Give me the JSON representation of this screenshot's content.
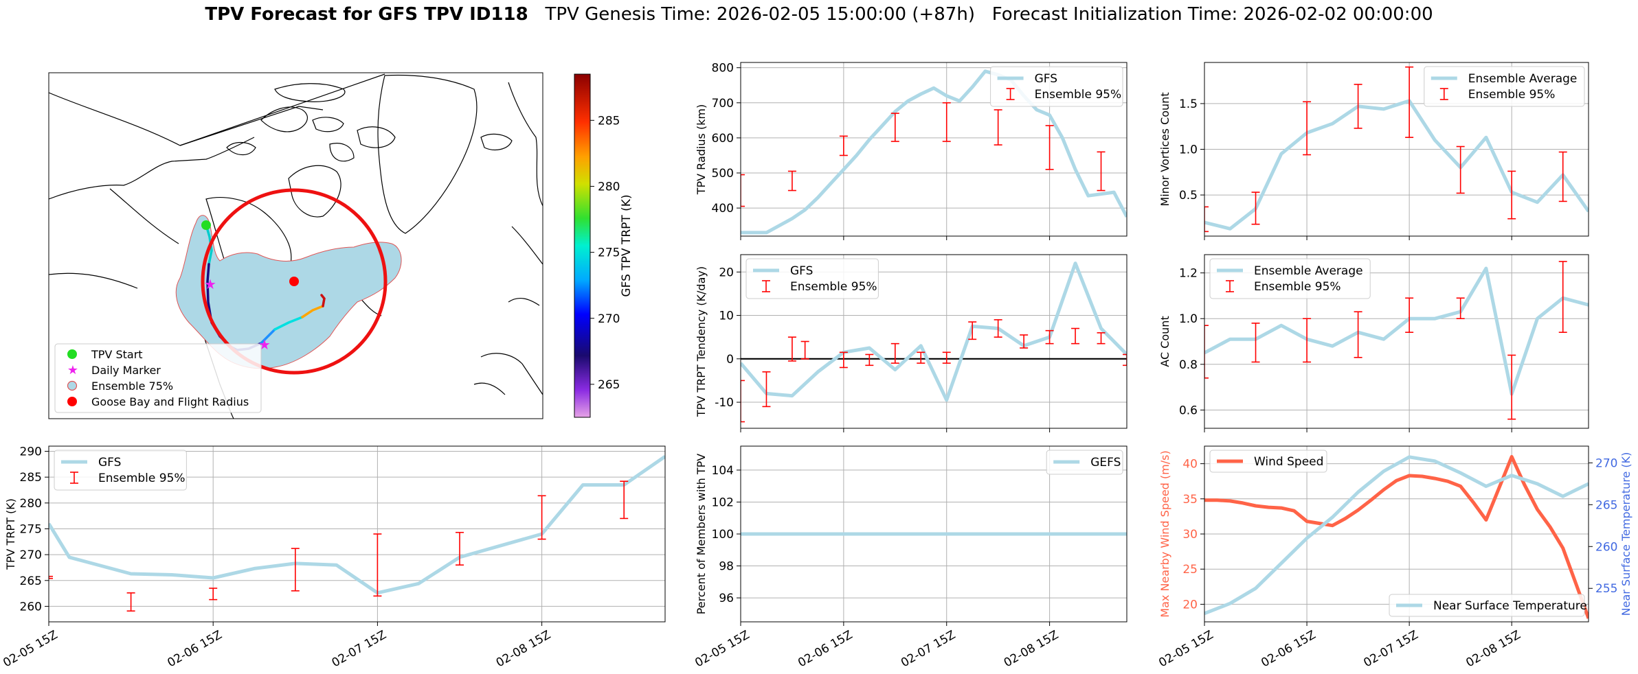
{
  "figure": {
    "title_bold": "TPV Forecast for GFS TPV ID118",
    "genesis": "TPV Genesis Time: 2026-02-05 15:00:00 (+87h)",
    "init": "Forecast Initialization Time: 2026-02-02 00:00:00"
  },
  "map": {
    "colorbar_label": "GFS TPV TRPT (K)",
    "colorbar_ticks": [
      265,
      270,
      275,
      280,
      285
    ],
    "colorbar_range": [
      262.5,
      288.5
    ],
    "legend": [
      "TPV Start",
      "Daily Marker",
      "Ensemble 75%",
      "Goose Bay and Flight Radius"
    ],
    "colors": {
      "start": "#22dd22",
      "marker": "#ee22ee",
      "ensemble_fill": "#add8e6",
      "ensemble_edge": "#e05555",
      "goose": "#ff0000",
      "radius": "#ee1111"
    }
  },
  "colors": {
    "gfs": "#add8e6",
    "ensemble": "#ff0000",
    "wind": "#ff6347",
    "temp_axis": "#4169e1"
  },
  "chart_data": [
    {
      "type": "line",
      "panel": "trpt",
      "xlabel": "",
      "ylabel": "TPV TRPT (K)",
      "xlim": [
        0,
        3.75
      ],
      "ylim": [
        257,
        291
      ],
      "x_ticks": [
        0,
        1,
        2,
        3
      ],
      "x_tick_labels": [
        "02-05 15Z",
        "02-06 15Z",
        "02-07 15Z",
        "02-08 15Z"
      ],
      "y_ticks": [
        260,
        265,
        270,
        275,
        280,
        285,
        290
      ],
      "legend": [
        "GFS",
        "Ensemble 95%"
      ],
      "series": [
        {
          "name": "GFS",
          "x": [
            0,
            0.125,
            0.5,
            0.75,
            1.0,
            1.25,
            1.5,
            1.75,
            2.0,
            2.25,
            2.5,
            3.0,
            3.25,
            3.5,
            3.75
          ],
          "values": [
            276,
            269.5,
            266.3,
            266.1,
            265.5,
            267.3,
            268.3,
            268,
            262.6,
            264.4,
            269.5,
            274,
            283.5,
            283.5,
            289
          ]
        }
      ],
      "error_bars": {
        "x": [
          0,
          0.5,
          1.0,
          1.5,
          2.0,
          2.5,
          3.0,
          3.5
        ],
        "lower": [
          265.4,
          259.1,
          261.3,
          263,
          262,
          268,
          273,
          277
        ],
        "upper": [
          265.8,
          262.6,
          263.5,
          271.2,
          274,
          274.3,
          281.4,
          284.2
        ]
      }
    },
    {
      "type": "line",
      "panel": "radius",
      "ylabel": "TPV Radius (km)",
      "xlim": [
        0,
        3.75
      ],
      "ylim": [
        320,
        815
      ],
      "x_ticks": [
        0,
        1,
        2,
        3
      ],
      "y_ticks": [
        400,
        500,
        600,
        700,
        800
      ],
      "legend": [
        "GFS",
        "Ensemble 95%"
      ],
      "series": [
        {
          "name": "GFS",
          "x": [
            0,
            0.125,
            0.25,
            0.375,
            0.5,
            0.625,
            0.75,
            0.875,
            1.0,
            1.125,
            1.25,
            1.375,
            1.5,
            1.625,
            1.75,
            1.875,
            2.0,
            2.125,
            2.25,
            2.375,
            2.5,
            2.625,
            2.75,
            2.875,
            3.0,
            3.125,
            3.25,
            3.375,
            3.5,
            3.625,
            3.75
          ],
          "values": [
            330,
            330,
            330,
            350,
            370,
            395,
            430,
            470,
            510,
            550,
            595,
            635,
            675,
            705,
            725,
            742,
            720,
            705,
            745,
            790,
            780,
            765,
            720,
            680,
            665,
            600,
            510,
            435,
            440,
            445,
            375
          ]
        }
      ],
      "error_bars": {
        "x": [
          0,
          0.5,
          1.0,
          1.5,
          2.0,
          2.5,
          3.0,
          3.5
        ],
        "lower": [
          405,
          450,
          550,
          590,
          590,
          580,
          510,
          450
        ],
        "upper": [
          495,
          505,
          605,
          670,
          700,
          680,
          635,
          560
        ]
      }
    },
    {
      "type": "line",
      "panel": "tendency",
      "ylabel": "TPV TRPT Tendency (K/day)",
      "xlim": [
        0,
        3.75
      ],
      "ylim": [
        -16,
        24
      ],
      "x_ticks": [
        0,
        1,
        2,
        3
      ],
      "y_ticks": [
        -10,
        0,
        10,
        20
      ],
      "zero_line": 0,
      "legend": [
        "GFS",
        "Ensemble 95%"
      ],
      "series": [
        {
          "name": "GFS",
          "x": [
            0,
            0.25,
            0.5,
            0.75,
            1.0,
            1.25,
            1.5,
            1.75,
            2.0,
            2.25,
            2.5,
            2.75,
            3.0,
            3.25,
            3.5,
            3.75
          ],
          "values": [
            -1,
            -8,
            -8.5,
            -3,
            1.5,
            2.5,
            -2.5,
            3,
            -9.5,
            7.5,
            7,
            3,
            5,
            22,
            7,
            1
          ]
        }
      ],
      "error_bars": {
        "x": [
          0,
          0.25,
          0.5,
          0.625,
          1.0,
          1.25,
          1.5,
          1.75,
          2.0,
          2.25,
          2.5,
          2.75,
          3.0,
          3.25,
          3.5,
          3.75
        ],
        "lower": [
          -14.5,
          -11,
          -0.5,
          0,
          -2,
          -1.5,
          -1,
          -1,
          -1,
          4.5,
          5,
          2.5,
          3.5,
          3.5,
          3.5,
          -1.5
        ],
        "upper": [
          -5,
          -3,
          5,
          4,
          1.5,
          1,
          3.5,
          1.5,
          1.5,
          8.5,
          9,
          5.5,
          6.5,
          7,
          6,
          1
        ]
      }
    },
    {
      "type": "line",
      "panel": "members",
      "ylabel": "Percent of Members with TPV",
      "xlim": [
        0,
        3.75
      ],
      "ylim": [
        94.5,
        105.5
      ],
      "x_ticks": [
        0,
        1,
        2,
        3
      ],
      "x_tick_labels": [
        "02-05 15Z",
        "02-06 15Z",
        "02-07 15Z",
        "02-08 15Z"
      ],
      "y_ticks": [
        96,
        98,
        100,
        102,
        104
      ],
      "legend": [
        "GEFS"
      ],
      "series": [
        {
          "name": "GEFS",
          "x": [
            0,
            3.75
          ],
          "values": [
            100,
            100
          ]
        }
      ]
    },
    {
      "type": "line",
      "panel": "minor",
      "ylabel": "Minor Vortices Count",
      "xlim": [
        0,
        3.75
      ],
      "ylim": [
        0.05,
        1.95
      ],
      "x_ticks": [
        0,
        1,
        2,
        3
      ],
      "y_ticks": [
        0.5,
        1.0,
        1.5
      ],
      "y_tick_labels": [
        "0.5",
        "1.0",
        "1.5"
      ],
      "legend": [
        "Ensemble Average",
        "Ensemble 95%"
      ],
      "series": [
        {
          "name": "Ensemble Average",
          "x": [
            0,
            0.25,
            0.5,
            0.75,
            1.0,
            1.25,
            1.5,
            1.75,
            2.0,
            2.25,
            2.5,
            2.75,
            3.0,
            3.25,
            3.5,
            3.75
          ],
          "values": [
            0.2,
            0.13,
            0.35,
            0.95,
            1.18,
            1.28,
            1.47,
            1.44,
            1.53,
            1.1,
            0.8,
            1.13,
            0.53,
            0.42,
            0.72,
            0.32
          ]
        }
      ],
      "error_bars": {
        "x": [
          0,
          0.5,
          1.0,
          1.5,
          2.0,
          2.5,
          3.0,
          3.5
        ],
        "lower": [
          0.1,
          0.18,
          0.94,
          1.23,
          1.13,
          0.52,
          0.24,
          0.43
        ],
        "upper": [
          0.37,
          0.53,
          1.52,
          1.71,
          1.9,
          1.03,
          0.76,
          0.97
        ]
      }
    },
    {
      "type": "line",
      "panel": "ac",
      "ylabel": "AC Count",
      "xlim": [
        0,
        3.75
      ],
      "ylim": [
        0.52,
        1.28
      ],
      "x_ticks": [
        0,
        1,
        2,
        3
      ],
      "y_ticks": [
        0.6,
        0.8,
        1.0,
        1.2
      ],
      "y_tick_labels": [
        "0.6",
        "0.8",
        "1.0",
        "1.2"
      ],
      "legend": [
        "Ensemble Average",
        "Ensemble 95%"
      ],
      "series": [
        {
          "name": "Ensemble Average",
          "x": [
            0,
            0.25,
            0.5,
            0.75,
            1.0,
            1.25,
            1.5,
            1.75,
            2.0,
            2.25,
            2.5,
            2.75,
            3.0,
            3.25,
            3.5,
            3.75
          ],
          "values": [
            0.85,
            0.91,
            0.91,
            0.97,
            0.91,
            0.88,
            0.94,
            0.91,
            1.0,
            1.0,
            1.03,
            1.22,
            0.67,
            1.0,
            1.09,
            1.06
          ]
        }
      ],
      "error_bars": {
        "x": [
          0,
          0.5,
          1.0,
          1.5,
          2.0,
          2.5,
          3.0,
          3.5
        ],
        "lower": [
          0.74,
          0.81,
          0.81,
          0.83,
          0.94,
          1.0,
          0.56,
          0.94
        ],
        "upper": [
          0.97,
          0.98,
          1.0,
          1.03,
          1.09,
          1.09,
          0.84,
          1.25
        ]
      }
    },
    {
      "type": "line",
      "panel": "wind",
      "ylabel": "Max Nearby Wind Speed (m/s)",
      "y2label": "Near Surface Temperature (K)",
      "xlim": [
        0,
        3.75
      ],
      "ylim": [
        17.5,
        42.5
      ],
      "y2lim": [
        251,
        272
      ],
      "x_ticks": [
        0,
        1,
        2,
        3
      ],
      "x_tick_labels": [
        "02-05 15Z",
        "02-06 15Z",
        "02-07 15Z",
        "02-08 15Z"
      ],
      "y_ticks": [
        20,
        25,
        30,
        35,
        40
      ],
      "y2_ticks": [
        255,
        260,
        265,
        270
      ],
      "legend": [
        "Wind Speed",
        "Near Surface Temperature"
      ],
      "series": [
        {
          "name": "Wind Speed",
          "axis": "left",
          "x": [
            0,
            0.125,
            0.25,
            0.375,
            0.5,
            0.625,
            0.75,
            0.875,
            1.0,
            1.125,
            1.25,
            1.375,
            1.5,
            1.625,
            1.75,
            1.875,
            2.0,
            2.125,
            2.25,
            2.375,
            2.5,
            2.625,
            2.75,
            2.875,
            3.0,
            3.125,
            3.25,
            3.375,
            3.5,
            3.625,
            3.75
          ],
          "values": [
            34.8,
            34.8,
            34.7,
            34.4,
            34.0,
            33.8,
            33.7,
            33.3,
            31.8,
            31.5,
            31.2,
            32.2,
            33.4,
            34.8,
            36.3,
            37.6,
            38.3,
            38.2,
            37.9,
            37.5,
            36.8,
            34.5,
            32.0,
            36.5,
            41.0,
            37.0,
            33.5,
            31.0,
            28.0,
            23.0,
            18.0
          ]
        },
        {
          "name": "Near Surface Temperature",
          "axis": "right",
          "x": [
            0,
            0.25,
            0.5,
            0.75,
            1.0,
            1.25,
            1.5,
            1.75,
            2.0,
            2.25,
            2.5,
            2.75,
            3.0,
            3.25,
            3.5,
            3.75
          ],
          "values": [
            252,
            253.2,
            255,
            258,
            261,
            263.5,
            266.5,
            269,
            270.7,
            270.2,
            268.8,
            267.2,
            268.5,
            267.5,
            266,
            267.5
          ]
        }
      ]
    }
  ]
}
